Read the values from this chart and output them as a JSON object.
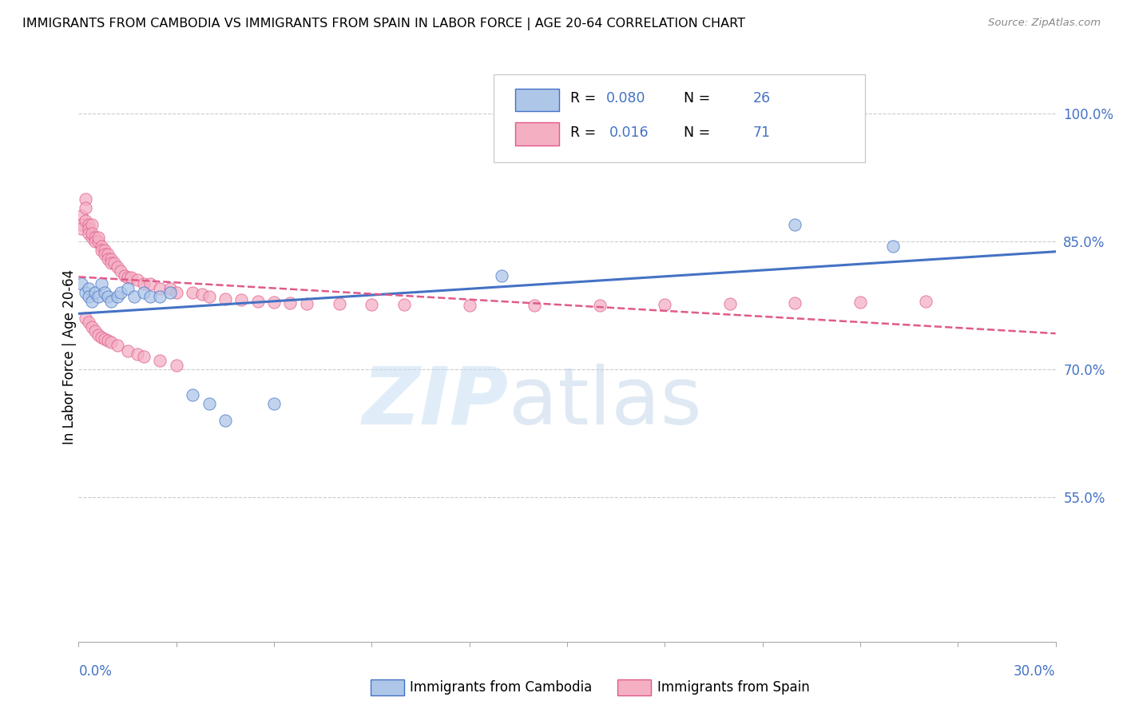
{
  "title": "IMMIGRANTS FROM CAMBODIA VS IMMIGRANTS FROM SPAIN IN LABOR FORCE | AGE 20-64 CORRELATION CHART",
  "source": "Source: ZipAtlas.com",
  "ylabel": "In Labor Force | Age 20-64",
  "ytick_labels": [
    "100.0%",
    "85.0%",
    "70.0%",
    "55.0%"
  ],
  "ytick_values": [
    1.0,
    0.85,
    0.7,
    0.55
  ],
  "xlim": [
    0.0,
    0.3
  ],
  "ylim": [
    0.38,
    1.05
  ],
  "legend_label_cambodia": "Immigrants from Cambodia",
  "legend_label_spain": "Immigrants from Spain",
  "color_cambodia": "#aec6e8",
  "color_spain": "#f4afc3",
  "line_color_cambodia": "#4472c4",
  "line_color_spain": "#e05a8a",
  "r_cambodia": "0.080",
  "n_cambodia": "26",
  "r_spain": "0.016",
  "n_spain": "71",
  "cambodia_x": [
    0.001,
    0.002,
    0.003,
    0.003,
    0.004,
    0.005,
    0.006,
    0.007,
    0.008,
    0.009,
    0.01,
    0.012,
    0.013,
    0.015,
    0.017,
    0.02,
    0.022,
    0.025,
    0.028,
    0.035,
    0.04,
    0.045,
    0.06,
    0.13,
    0.22,
    0.25
  ],
  "cambodia_y": [
    0.8,
    0.79,
    0.795,
    0.785,
    0.78,
    0.79,
    0.785,
    0.8,
    0.79,
    0.785,
    0.78,
    0.785,
    0.79,
    0.795,
    0.785,
    0.79,
    0.785,
    0.785,
    0.79,
    0.67,
    0.66,
    0.64,
    0.66,
    0.81,
    0.87,
    0.845
  ],
  "spain_x": [
    0.001,
    0.001,
    0.001,
    0.002,
    0.002,
    0.002,
    0.003,
    0.003,
    0.003,
    0.004,
    0.004,
    0.004,
    0.005,
    0.005,
    0.006,
    0.006,
    0.007,
    0.007,
    0.008,
    0.008,
    0.009,
    0.009,
    0.01,
    0.01,
    0.011,
    0.012,
    0.013,
    0.014,
    0.015,
    0.016,
    0.018,
    0.02,
    0.022,
    0.025,
    0.028,
    0.03,
    0.035,
    0.038,
    0.04,
    0.045,
    0.05,
    0.055,
    0.06,
    0.065,
    0.07,
    0.08,
    0.09,
    0.1,
    0.12,
    0.14,
    0.16,
    0.18,
    0.2,
    0.22,
    0.24,
    0.26,
    0.002,
    0.003,
    0.004,
    0.005,
    0.006,
    0.007,
    0.008,
    0.009,
    0.01,
    0.012,
    0.015,
    0.018,
    0.02,
    0.025,
    0.03
  ],
  "spain_y": [
    0.88,
    0.87,
    0.865,
    0.9,
    0.89,
    0.875,
    0.87,
    0.865,
    0.86,
    0.855,
    0.87,
    0.86,
    0.855,
    0.85,
    0.85,
    0.855,
    0.845,
    0.84,
    0.84,
    0.835,
    0.835,
    0.83,
    0.83,
    0.825,
    0.825,
    0.82,
    0.815,
    0.81,
    0.808,
    0.808,
    0.805,
    0.8,
    0.8,
    0.795,
    0.795,
    0.79,
    0.79,
    0.788,
    0.785,
    0.783,
    0.782,
    0.78,
    0.779,
    0.778,
    0.777,
    0.777,
    0.776,
    0.776,
    0.775,
    0.775,
    0.775,
    0.776,
    0.777,
    0.778,
    0.779,
    0.78,
    0.76,
    0.755,
    0.75,
    0.745,
    0.74,
    0.738,
    0.736,
    0.734,
    0.732,
    0.728,
    0.722,
    0.718,
    0.715,
    0.71,
    0.705
  ]
}
